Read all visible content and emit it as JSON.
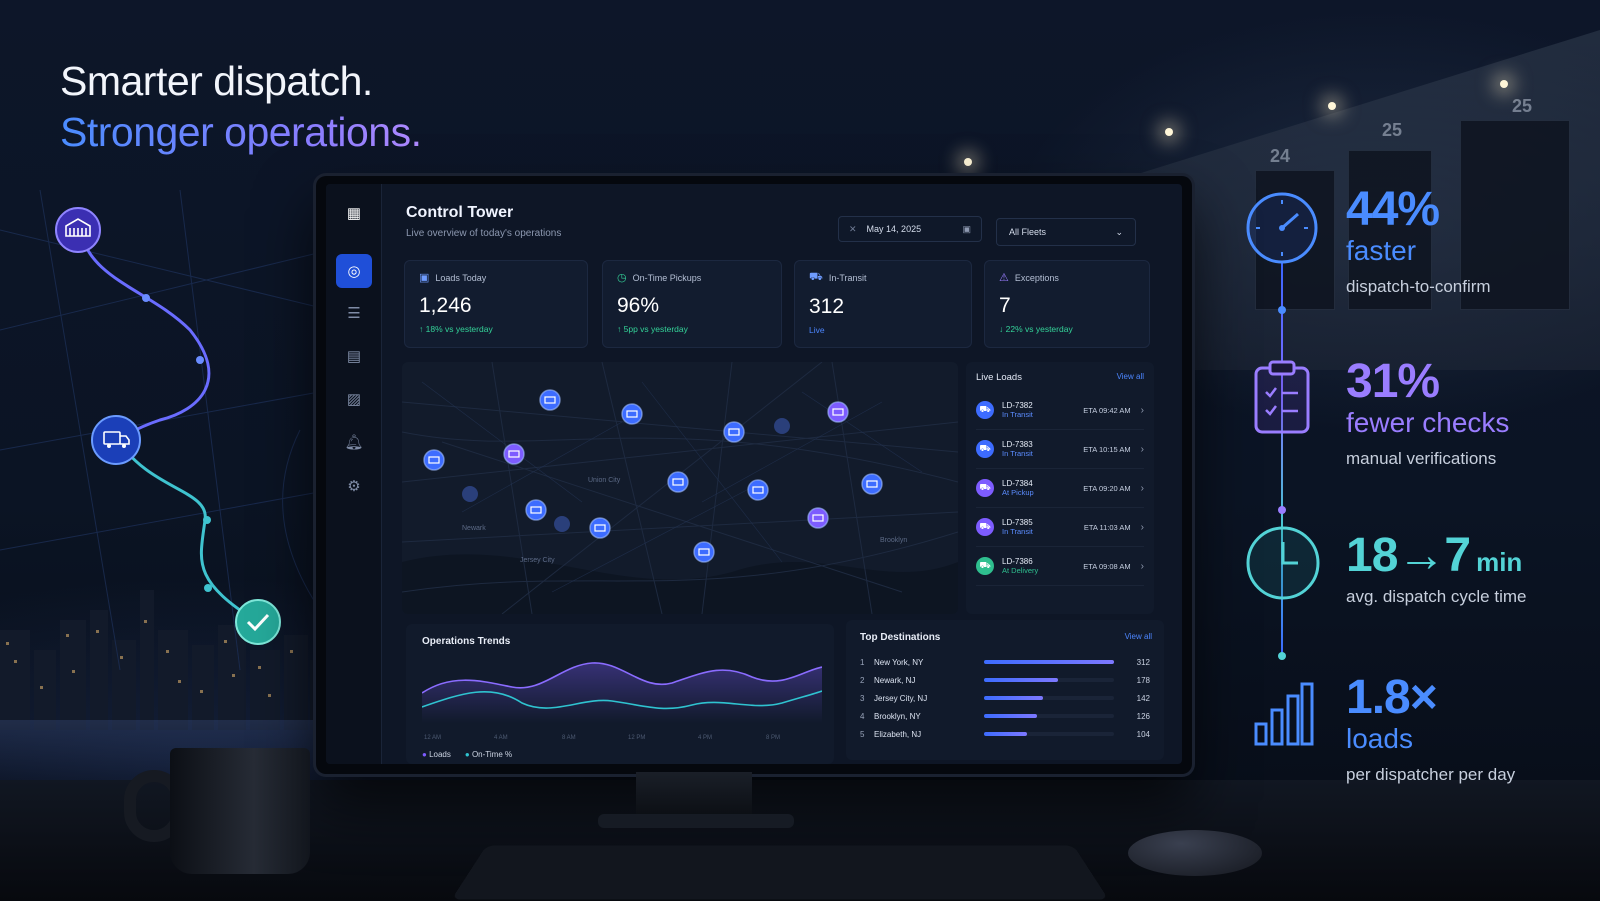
{
  "headline": {
    "line1": "Smarter dispatch.",
    "line2": "Stronger operations."
  },
  "dashboard": {
    "title": "Control Tower",
    "subtitle": "Live overview of today's operations",
    "date": "May 14, 2025",
    "fleet_filter": "All Fleets",
    "kpis": [
      {
        "label": "Loads Today",
        "value": "1,246",
        "delta": "↑ 18% vs yesterday",
        "delta_color": "#34d399"
      },
      {
        "label": "On-Time Pickups",
        "value": "96%",
        "delta": "↑ 5pp vs yesterday",
        "delta_color": "#34d399"
      },
      {
        "label": "In-Transit",
        "value": "312",
        "delta": "Live",
        "delta_color": "#4c86ff"
      },
      {
        "label": "Exceptions",
        "value": "7",
        "delta": "↓ 22% vs yesterday",
        "delta_color": "#34d399"
      }
    ],
    "map_labels": [
      "Newark",
      "Jersey City",
      "Brooklyn",
      "Union City"
    ],
    "live_loads": {
      "title": "Live Loads",
      "view_all": "View all",
      "items": [
        {
          "id": "LD-7382",
          "status": "In Transit",
          "eta": "ETA 09:42 AM",
          "color": "#3d6cff"
        },
        {
          "id": "LD-7383",
          "status": "In Transit",
          "eta": "ETA 10:15 AM",
          "color": "#3d6cff"
        },
        {
          "id": "LD-7384",
          "status": "At Pickup",
          "eta": "ETA 09:20 AM",
          "color": "#7d5cff"
        },
        {
          "id": "LD-7385",
          "status": "In Transit",
          "eta": "ETA 11:03 AM",
          "color": "#7d5cff"
        },
        {
          "id": "LD-7386",
          "status": "At Delivery",
          "eta": "ETA 09:08 AM",
          "color": "#2fbf8f"
        }
      ]
    },
    "trends": {
      "title": "Operations Trends",
      "x_ticks": [
        "12 AM",
        "4 AM",
        "8 AM",
        "12 PM",
        "4 PM",
        "8 PM"
      ],
      "legend": [
        {
          "name": "Loads",
          "color": "#7d5cff"
        },
        {
          "name": "On-Time %",
          "color": "#2fc3d0"
        }
      ]
    },
    "top_destinations": {
      "title": "Top Destinations",
      "view_all": "View all",
      "items": [
        {
          "rank": "1",
          "city": "New York, NY",
          "value": 312
        },
        {
          "rank": "2",
          "city": "Newark, NJ",
          "value": 178
        },
        {
          "rank": "3",
          "city": "Jersey City, NJ",
          "value": 142
        },
        {
          "rank": "4",
          "city": "Brooklyn, NY",
          "value": 126
        },
        {
          "rank": "5",
          "city": "Elizabeth, NJ",
          "value": 104
        }
      ]
    }
  },
  "stats": [
    {
      "big": "44%",
      "mid": "faster",
      "small": "dispatch-to-confirm",
      "color": "#4a8cff"
    },
    {
      "big": "31%",
      "mid": "fewer checks",
      "small": "manual verifications",
      "color": "#9a7dff"
    },
    {
      "big": "18→7",
      "unit": "min",
      "small": "avg. dispatch cycle time",
      "color": "#53d3d6"
    },
    {
      "big": "1.8×",
      "mid": "loads",
      "small": "per dispatcher per day",
      "color": "#4a8cff"
    }
  ],
  "warehouse_docks": [
    "24",
    "25",
    "25"
  ]
}
